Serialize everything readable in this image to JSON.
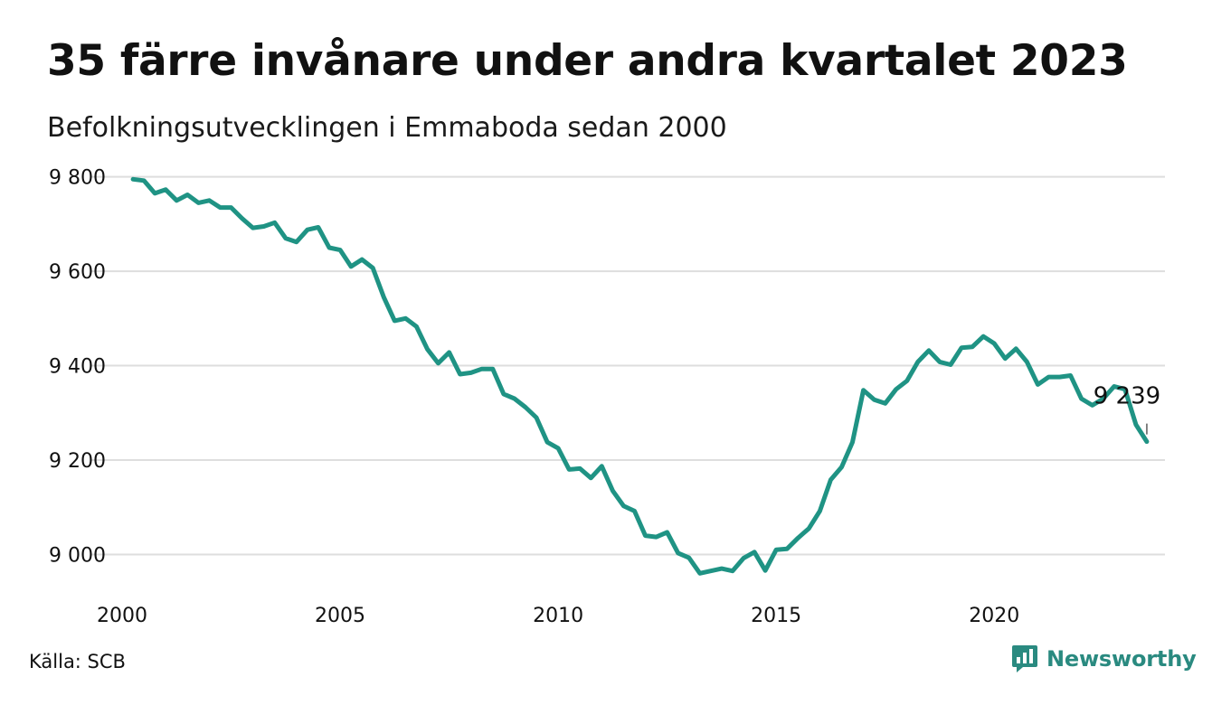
{
  "header": {
    "title": "35 färre invånare under andra kvartalet 2023",
    "subtitle": "Befolkningsutvecklingen i Emmaboda sedan 2000"
  },
  "footer": {
    "source": "Källa: SCB",
    "brand": "Newsworthy",
    "brand_icon": "bar-chart-speech-bubble-icon"
  },
  "colors": {
    "line": "#1f9384",
    "grid": "#dedede",
    "text": "#111111",
    "brand": "#2a8a80"
  },
  "chart_data": {
    "type": "line",
    "xlim": [
      2000,
      2023.75
    ],
    "ylim": [
      8930,
      9830
    ],
    "x_ticks": [
      2000,
      2005,
      2010,
      2015,
      2020
    ],
    "x_tick_labels": [
      "2000",
      "2005",
      "2010",
      "2015",
      "2020"
    ],
    "y_ticks": [
      9000,
      9200,
      9400,
      9600,
      9800
    ],
    "y_tick_labels": [
      "9 000",
      "9 200",
      "9 400",
      "9 600",
      "9 800"
    ],
    "grid": "horizontal",
    "x_start": 2000.25,
    "x_step": 0.25,
    "values": [
      9795,
      9792,
      9765,
      9773,
      9750,
      9762,
      9745,
      9750,
      9735,
      9735,
      9712,
      9692,
      9695,
      9703,
      9670,
      9662,
      9688,
      9693,
      9650,
      9645,
      9610,
      9625,
      9607,
      9545,
      9495,
      9500,
      9483,
      9435,
      9405,
      9428,
      9382,
      9385,
      9393,
      9393,
      9340,
      9330,
      9312,
      9290,
      9238,
      9225,
      9180,
      9182,
      9162,
      9187,
      9135,
      9103,
      9092,
      9040,
      9037,
      9047,
      9003,
      8993,
      8960,
      8965,
      8970,
      8965,
      8992,
      9005,
      8966,
      9010,
      9012,
      9035,
      9055,
      9092,
      9158,
      9185,
      9238,
      9348,
      9328,
      9320,
      9350,
      9368,
      9408,
      9432,
      9408,
      9402,
      9438,
      9440,
      9462,
      9447,
      9415,
      9436,
      9408,
      9360,
      9376,
      9376,
      9379,
      9330,
      9316,
      9330,
      9356,
      9350,
      9275,
      9239
    ],
    "annotation": {
      "label": "9 239",
      "x": 2023.5,
      "y": 9239
    }
  }
}
